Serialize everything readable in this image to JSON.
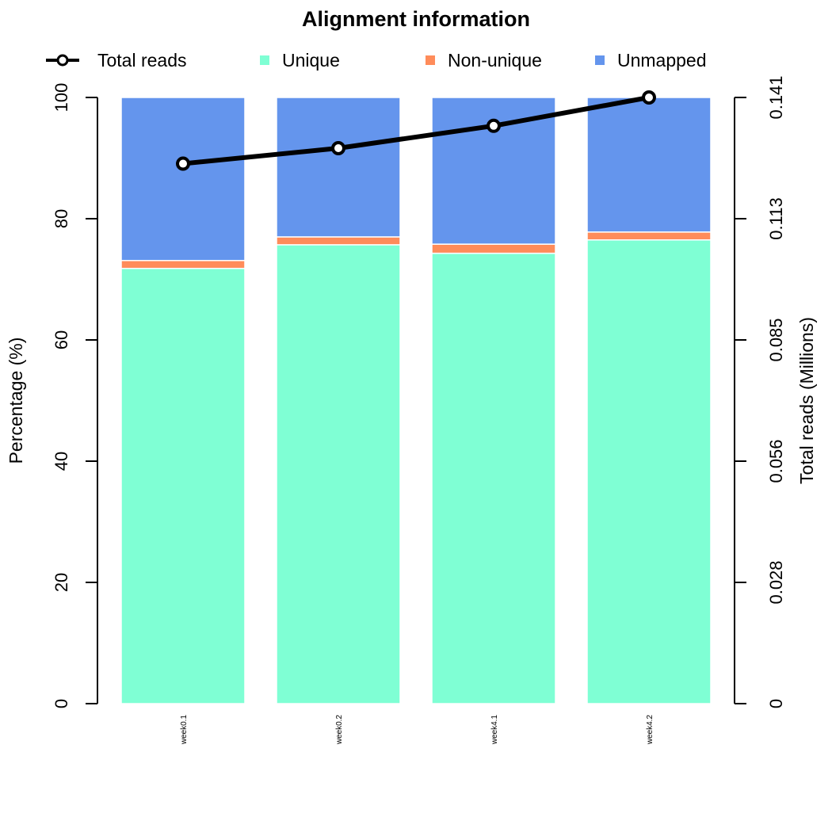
{
  "chart_data": {
    "type": "bar",
    "stacked": true,
    "title": "Alignment information",
    "categories": [
      "week0.1",
      "week0.2",
      "week4.1",
      "week4.2"
    ],
    "series": [
      {
        "name": "Unique",
        "color": "#7fffd4",
        "values": [
          71.8,
          75.7,
          74.3,
          76.5
        ]
      },
      {
        "name": "Non-unique",
        "color": "#ff8c5a",
        "values": [
          1.3,
          1.3,
          1.5,
          1.3
        ]
      },
      {
        "name": "Unmapped",
        "color": "#6495ed",
        "values": [
          26.9,
          23.0,
          24.2,
          22.2
        ]
      }
    ],
    "line": {
      "name": "Total reads",
      "color": "#000000",
      "values_millions": [
        0.1256,
        0.1292,
        0.1344,
        0.141
      ]
    },
    "ylabel": "Percentage (%)",
    "ylim": [
      0,
      100
    ],
    "yticks": [
      0,
      20,
      40,
      60,
      80,
      100
    ],
    "y2label": "Total reads (Millions)",
    "y2lim": [
      0,
      0.141
    ],
    "y2ticks": [
      "0",
      "0.028",
      "0.056",
      "0.085",
      "0.113",
      "0.141"
    ],
    "legend_position": "top"
  }
}
